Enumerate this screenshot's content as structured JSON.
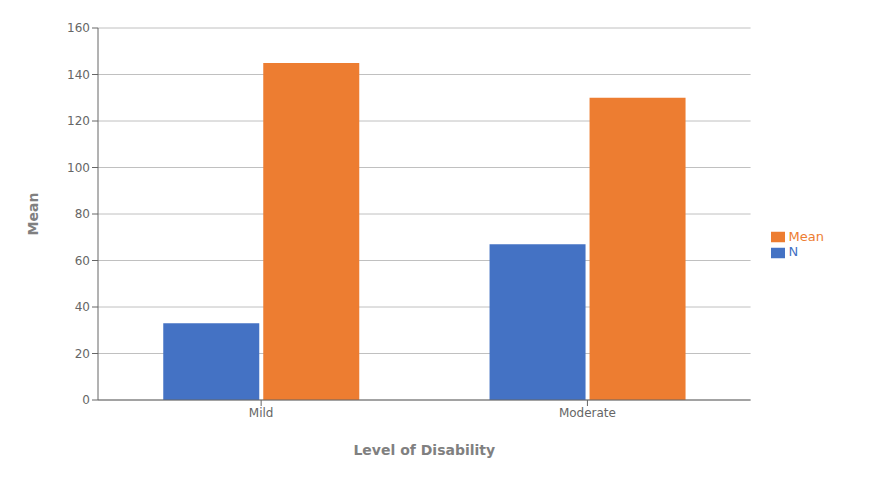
{
  "chart_data": {
    "type": "bar",
    "xlabel": "Level of Disability",
    "ylabel": "Mean",
    "categories": [
      "Mild",
      "Moderate"
    ],
    "series": [
      {
        "name": "N",
        "color": "#4472c4",
        "values": [
          33,
          67
        ]
      },
      {
        "name": "Mean",
        "color": "#ed7d31",
        "values": [
          145,
          130
        ]
      }
    ],
    "ylim": [
      0,
      160
    ],
    "yticks": [
      0,
      20,
      40,
      60,
      80,
      100,
      120,
      140,
      160
    ],
    "grid": true,
    "legend": "right"
  }
}
